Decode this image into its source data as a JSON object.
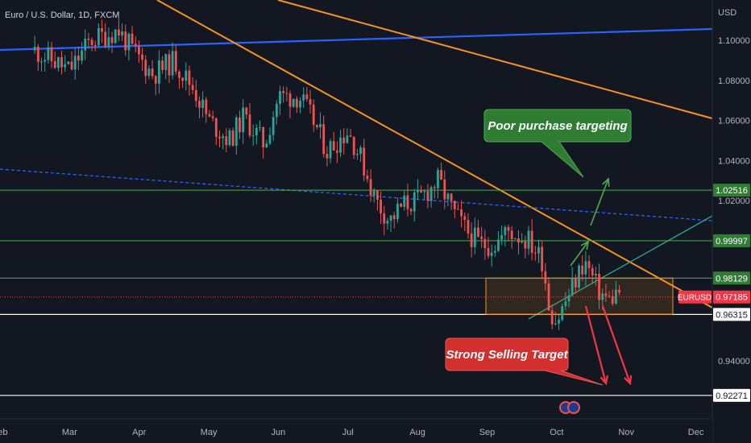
{
  "chart_data": {
    "type": "candlestick",
    "title": "Euro / U.S. Dollar, 1D, FXCM",
    "symbol": "EURUSD",
    "currency_label": "USD",
    "last_price": 0.97185,
    "x_ticks": [
      "Feb",
      "Mar",
      "Apr",
      "May",
      "Jun",
      "Jul",
      "Aug",
      "Sep",
      "Oct",
      "Nov",
      "Dec"
    ],
    "x_range": [
      0,
      10.7
    ],
    "y_ticks": [
      "1.10000",
      "1.08000",
      "1.06000",
      "1.04000",
      "1.02000",
      "0.94000"
    ],
    "y_range": [
      0.907,
      1.1125
    ],
    "levels": [
      {
        "label": "1.02516",
        "value": 1.02516
      },
      {
        "label": "0.99997",
        "value": 0.99997
      },
      {
        "label": "0.98129",
        "value": 0.98129
      },
      {
        "label": "0.96315",
        "value": 0.96315
      },
      {
        "label": "0.92271",
        "value": 0.92271
      }
    ],
    "price_path": [
      [
        0.5,
        1.095
      ],
      [
        1.0,
        1.085
      ],
      [
        1.3,
        1.1
      ],
      [
        1.7,
        1.105
      ],
      [
        1.9,
        1.095
      ],
      [
        2.2,
        1.083
      ],
      [
        2.5,
        1.09
      ],
      [
        2.8,
        1.075
      ],
      [
        3.0,
        1.06
      ],
      [
        3.3,
        1.05
      ],
      [
        3.5,
        1.062
      ],
      [
        3.8,
        1.048
      ],
      [
        4.0,
        1.072
      ],
      [
        4.3,
        1.072
      ],
      [
        4.5,
        1.06
      ],
      [
        4.7,
        1.045
      ],
      [
        5.0,
        1.055
      ],
      [
        5.2,
        1.04
      ],
      [
        5.4,
        1.02
      ],
      [
        5.6,
        1.01
      ],
      [
        5.8,
        1.018
      ],
      [
        6.0,
        1.02
      ],
      [
        6.3,
        1.03
      ],
      [
        6.5,
        1.015
      ],
      [
        6.7,
        1.005
      ],
      [
        6.9,
        0.998
      ],
      [
        7.1,
        0.998
      ],
      [
        7.3,
        1.005
      ],
      [
        7.6,
        1.0
      ],
      [
        7.8,
        0.99
      ],
      [
        7.9,
        0.965
      ],
      [
        8.0,
        0.96
      ],
      [
        8.2,
        0.975
      ],
      [
        8.4,
        0.99
      ],
      [
        8.6,
        0.975
      ],
      [
        8.75,
        0.97
      ],
      [
        8.9,
        0.975
      ]
    ],
    "annotations": [
      {
        "text": "Poor purchase targeting"
      },
      {
        "text": "Strong Selling Target"
      }
    ]
  }
}
